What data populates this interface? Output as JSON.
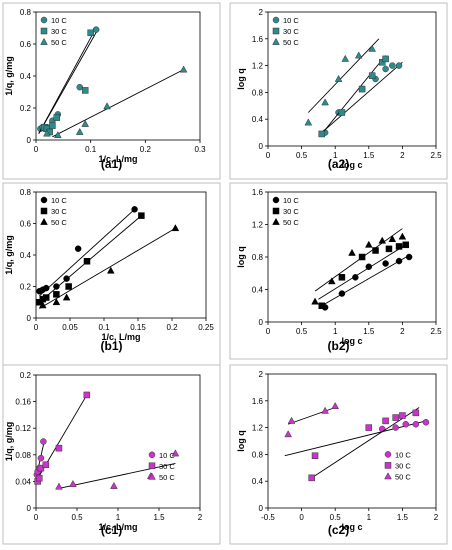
{
  "figure": {
    "panels": [
      {
        "id": "a1",
        "caption_letter": "a",
        "caption_num": "1"
      },
      {
        "id": "a2",
        "caption_letter": "a",
        "caption_num": "2"
      },
      {
        "id": "b1",
        "caption_letter": "b",
        "caption_num": "1"
      },
      {
        "id": "b2",
        "caption_letter": "b",
        "caption_num": "2"
      },
      {
        "id": "c1",
        "caption_letter": "c",
        "caption_num": "1"
      },
      {
        "id": "c2",
        "caption_letter": "c",
        "caption_num": "2"
      }
    ]
  },
  "colors": {
    "teal": "#2e8b8b",
    "black": "#000000",
    "magenta": "#cc33cc"
  },
  "chart_data": [
    {
      "id": "a1",
      "type": "scatter",
      "xlabel": "1/c, L/mg",
      "ylabel": "1/q, g/mg",
      "xlim": [
        0,
        0.3
      ],
      "ylim": [
        0,
        0.8
      ],
      "xticks": [
        "0",
        "0.1",
        "0.2",
        "0.3"
      ],
      "yticks": [
        "0",
        "0.2",
        "0.4",
        "0.6",
        "0.8"
      ],
      "xtick_values": [
        0,
        0.1,
        0.2,
        0.3
      ],
      "ytick_values": [
        0,
        0.2,
        0.4,
        0.6,
        0.8
      ],
      "legend_position": "top-left",
      "color": "#2e8b8b",
      "grid": false,
      "series": [
        {
          "name": "10 C",
          "marker": "circle",
          "points": [
            [
              0.008,
              0.07
            ],
            [
              0.012,
              0.08
            ],
            [
              0.016,
              0.07
            ],
            [
              0.02,
              0.08
            ],
            [
              0.03,
              0.12
            ],
            [
              0.04,
              0.16
            ],
            [
              0.08,
              0.33
            ],
            [
              0.11,
              0.69
            ]
          ],
          "fit": [
            [
              0.005,
              0.04
            ],
            [
              0.113,
              0.69
            ]
          ]
        },
        {
          "name": "30 C",
          "marker": "square",
          "points": [
            [
              0.015,
              0.08
            ],
            [
              0.02,
              0.07
            ],
            [
              0.025,
              0.05
            ],
            [
              0.03,
              0.09
            ],
            [
              0.038,
              0.14
            ],
            [
              0.09,
              0.31
            ],
            [
              0.1,
              0.67
            ]
          ],
          "fit": [
            [
              0.005,
              0.04
            ],
            [
              0.105,
              0.67
            ]
          ]
        },
        {
          "name": "50 C",
          "marker": "triangle",
          "points": [
            [
              0.02,
              0.04
            ],
            [
              0.04,
              0.03
            ],
            [
              0.08,
              0.05
            ],
            [
              0.09,
              0.1
            ],
            [
              0.13,
              0.21
            ],
            [
              0.27,
              0.44
            ]
          ],
          "fit": [
            [
              0.03,
              0.02
            ],
            [
              0.27,
              0.44
            ]
          ]
        }
      ]
    },
    {
      "id": "a2",
      "type": "scatter",
      "xlabel": "log c",
      "ylabel": "log q",
      "xlim": [
        0,
        2.5
      ],
      "ylim": [
        0,
        2
      ],
      "xticks": [
        "0",
        "0.5",
        "1",
        "1.5",
        "2",
        "2.5"
      ],
      "yticks": [
        "0",
        "0.4",
        "0.8",
        "1.2",
        "1.6",
        "2"
      ],
      "xtick_values": [
        0,
        0.5,
        1,
        1.5,
        2,
        2.5
      ],
      "ytick_values": [
        0,
        0.4,
        0.8,
        1.2,
        1.6,
        2
      ],
      "legend_position": "top-left",
      "color": "#2e8b8b",
      "grid": false,
      "series": [
        {
          "name": "10 C",
          "marker": "circle",
          "points": [
            [
              0.85,
              0.2
            ],
            [
              1.05,
              0.5
            ],
            [
              1.4,
              0.85
            ],
            [
              1.6,
              1.0
            ],
            [
              1.75,
              1.15
            ],
            [
              1.85,
              1.2
            ],
            [
              1.95,
              1.2
            ]
          ],
          "fit": [
            [
              0.8,
              0.2
            ],
            [
              2.0,
              1.25
            ]
          ]
        },
        {
          "name": "30 C",
          "marker": "square",
          "points": [
            [
              0.8,
              0.18
            ],
            [
              1.1,
              0.5
            ],
            [
              1.4,
              0.85
            ],
            [
              1.55,
              1.05
            ],
            [
              1.7,
              1.25
            ],
            [
              1.75,
              1.3
            ]
          ],
          "fit": [
            [
              0.8,
              0.18
            ],
            [
              1.75,
              1.35
            ]
          ]
        },
        {
          "name": "50 C",
          "marker": "triangle",
          "points": [
            [
              0.6,
              0.35
            ],
            [
              0.85,
              0.65
            ],
            [
              1.05,
              1.0
            ],
            [
              1.15,
              1.3
            ],
            [
              1.35,
              1.35
            ],
            [
              1.55,
              1.45
            ]
          ],
          "fit": [
            [
              0.6,
              0.5
            ],
            [
              1.65,
              1.6
            ]
          ]
        }
      ]
    },
    {
      "id": "b1",
      "type": "scatter",
      "xlabel": "1/c, L/mg",
      "ylabel": "1/q, g/mg",
      "xlim": [
        0,
        0.25
      ],
      "ylim": [
        0,
        0.8
      ],
      "xticks": [
        "0",
        "0.05",
        "0.1",
        "0.15",
        "0.2",
        "0.25"
      ],
      "yticks": [
        "0",
        "0.2",
        "0.4",
        "0.6",
        "0.8"
      ],
      "xtick_values": [
        0,
        0.05,
        0.1,
        0.15,
        0.2,
        0.25
      ],
      "ytick_values": [
        0,
        0.2,
        0.4,
        0.6,
        0.8
      ],
      "legend_position": "top-left",
      "color": "#000000",
      "grid": false,
      "series": [
        {
          "name": "10 C",
          "marker": "circle",
          "points": [
            [
              0.005,
              0.17
            ],
            [
              0.01,
              0.18
            ],
            [
              0.015,
              0.19
            ],
            [
              0.03,
              0.2
            ],
            [
              0.045,
              0.25
            ],
            [
              0.062,
              0.44
            ],
            [
              0.145,
              0.69
            ]
          ],
          "fit": [
            [
              0.005,
              0.14
            ],
            [
              0.145,
              0.69
            ]
          ]
        },
        {
          "name": "30 C",
          "marker": "square",
          "points": [
            [
              0.005,
              0.1
            ],
            [
              0.01,
              0.12
            ],
            [
              0.015,
              0.13
            ],
            [
              0.03,
              0.15
            ],
            [
              0.048,
              0.2
            ],
            [
              0.075,
              0.36
            ],
            [
              0.155,
              0.65
            ]
          ],
          "fit": [
            [
              0.005,
              0.1
            ],
            [
              0.155,
              0.65
            ]
          ]
        },
        {
          "name": "50 C",
          "marker": "triangle",
          "points": [
            [
              0.01,
              0.08
            ],
            [
              0.03,
              0.1
            ],
            [
              0.045,
              0.13
            ],
            [
              0.11,
              0.3
            ],
            [
              0.205,
              0.57
            ]
          ],
          "fit": [
            [
              0.005,
              0.06
            ],
            [
              0.205,
              0.57
            ]
          ]
        }
      ]
    },
    {
      "id": "b2",
      "type": "scatter",
      "xlabel": "log c",
      "ylabel": "log q",
      "xlim": [
        0,
        2.5
      ],
      "ylim": [
        0,
        1.6
      ],
      "xticks": [
        "0",
        "0.5",
        "1",
        "1.5",
        "2",
        "2.5"
      ],
      "yticks": [
        "0",
        "0.4",
        "0.8",
        "1.2",
        "1.6"
      ],
      "xtick_values": [
        0,
        0.5,
        1,
        1.5,
        2,
        2.5
      ],
      "ytick_values": [
        0,
        0.4,
        0.8,
        1.2,
        1.6
      ],
      "legend_position": "top-left",
      "color": "#000000",
      "grid": false,
      "series": [
        {
          "name": "10 C",
          "marker": "circle",
          "points": [
            [
              0.85,
              0.18
            ],
            [
              1.1,
              0.35
            ],
            [
              1.3,
              0.55
            ],
            [
              1.5,
              0.68
            ],
            [
              1.75,
              0.72
            ],
            [
              1.95,
              0.75
            ],
            [
              2.1,
              0.8
            ]
          ],
          "fit": [
            [
              0.8,
              0.2
            ],
            [
              2.1,
              0.82
            ]
          ]
        },
        {
          "name": "30 C",
          "marker": "square",
          "points": [
            [
              0.8,
              0.2
            ],
            [
              1.1,
              0.55
            ],
            [
              1.4,
              0.8
            ],
            [
              1.6,
              0.88
            ],
            [
              1.8,
              0.9
            ],
            [
              1.95,
              0.93
            ],
            [
              2.05,
              0.95
            ]
          ],
          "fit": [
            [
              0.75,
              0.28
            ],
            [
              2.05,
              0.95
            ]
          ]
        },
        {
          "name": "50 C",
          "marker": "triangle",
          "points": [
            [
              0.7,
              0.25
            ],
            [
              0.95,
              0.5
            ],
            [
              1.25,
              0.85
            ],
            [
              1.5,
              0.95
            ],
            [
              1.7,
              1.0
            ],
            [
              1.85,
              1.02
            ],
            [
              2.0,
              1.05
            ]
          ],
          "fit": [
            [
              0.7,
              0.38
            ],
            [
              2.0,
              1.15
            ]
          ]
        }
      ]
    },
    {
      "id": "c1",
      "type": "scatter",
      "xlabel": "1/c, L/mg",
      "ylabel": "1/q, g/mg",
      "xlim": [
        0,
        2
      ],
      "ylim": [
        0,
        0.2
      ],
      "xticks": [
        "0",
        "0.5",
        "1",
        "1.5",
        "2"
      ],
      "yticks": [
        "0",
        "0.04",
        "0.08",
        "0.12",
        "0.16",
        "0.2"
      ],
      "xtick_values": [
        0,
        0.5,
        1,
        1.5,
        2
      ],
      "ytick_values": [
        0,
        0.04,
        0.08,
        0.12,
        0.16,
        0.2
      ],
      "legend_position": "right",
      "color": "#cc33cc",
      "grid": false,
      "series": [
        {
          "name": "10 C",
          "marker": "circle",
          "points": [
            [
              0.01,
              0.05
            ],
            [
              0.02,
              0.055
            ],
            [
              0.04,
              0.06
            ],
            [
              0.06,
              0.075
            ],
            [
              0.09,
              0.1
            ]
          ],
          "fit": [
            [
              0.0,
              0.045
            ],
            [
              0.1,
              0.1
            ]
          ]
        },
        {
          "name": "30 C",
          "marker": "square",
          "points": [
            [
              0.02,
              0.04
            ],
            [
              0.04,
              0.045
            ],
            [
              0.06,
              0.06
            ],
            [
              0.12,
              0.065
            ],
            [
              0.28,
              0.09
            ],
            [
              0.62,
              0.17
            ]
          ],
          "fit": [
            [
              0.0,
              0.04
            ],
            [
              0.62,
              0.17
            ]
          ]
        },
        {
          "name": "50 C",
          "marker": "triangle",
          "points": [
            [
              0.28,
              0.032
            ],
            [
              0.45,
              0.036
            ],
            [
              0.95,
              0.033
            ],
            [
              1.4,
              0.048
            ],
            [
              1.7,
              0.082
            ]
          ],
          "fit": [
            [
              0.3,
              0.03
            ],
            [
              1.7,
              0.067
            ]
          ]
        }
      ]
    },
    {
      "id": "c2",
      "type": "scatter",
      "xlabel": "log c",
      "ylabel": "log q",
      "xlim": [
        -0.5,
        2
      ],
      "ylim": [
        0,
        2
      ],
      "xticks": [
        "-0.5",
        "0",
        "0.5",
        "1",
        "1.5",
        "2"
      ],
      "yticks": [
        "0",
        "0.4",
        "0.8",
        "1.2",
        "1.6",
        "2"
      ],
      "xtick_values": [
        -0.5,
        0,
        0.5,
        1,
        1.5,
        2
      ],
      "ytick_values": [
        0,
        0.4,
        0.8,
        1.2,
        1.6,
        2
      ],
      "legend_position": "right",
      "color": "#cc33cc",
      "grid": false,
      "series": [
        {
          "name": "10 C",
          "marker": "circle",
          "points": [
            [
              1.2,
              1.18
            ],
            [
              1.4,
              1.2
            ],
            [
              1.55,
              1.25
            ],
            [
              1.7,
              1.25
            ],
            [
              1.85,
              1.28
            ]
          ],
          "fit": [
            [
              -0.25,
              0.78
            ],
            [
              1.85,
              1.3
            ]
          ]
        },
        {
          "name": "30 C",
          "marker": "square",
          "points": [
            [
              0.15,
              0.45
            ],
            [
              0.2,
              0.78
            ],
            [
              1.0,
              1.2
            ],
            [
              1.25,
              1.3
            ],
            [
              1.4,
              1.35
            ],
            [
              1.5,
              1.38
            ],
            [
              1.7,
              1.42
            ]
          ],
          "fit": [
            [
              0.15,
              0.45
            ],
            [
              1.75,
              1.5
            ]
          ]
        },
        {
          "name": "50 C",
          "marker": "triangle",
          "points": [
            [
              -0.2,
              1.1
            ],
            [
              -0.15,
              1.3
            ],
            [
              0.35,
              1.45
            ],
            [
              0.5,
              1.52
            ]
          ],
          "fit": [
            [
              -0.2,
              1.25
            ],
            [
              0.5,
              1.5
            ]
          ]
        }
      ]
    }
  ]
}
